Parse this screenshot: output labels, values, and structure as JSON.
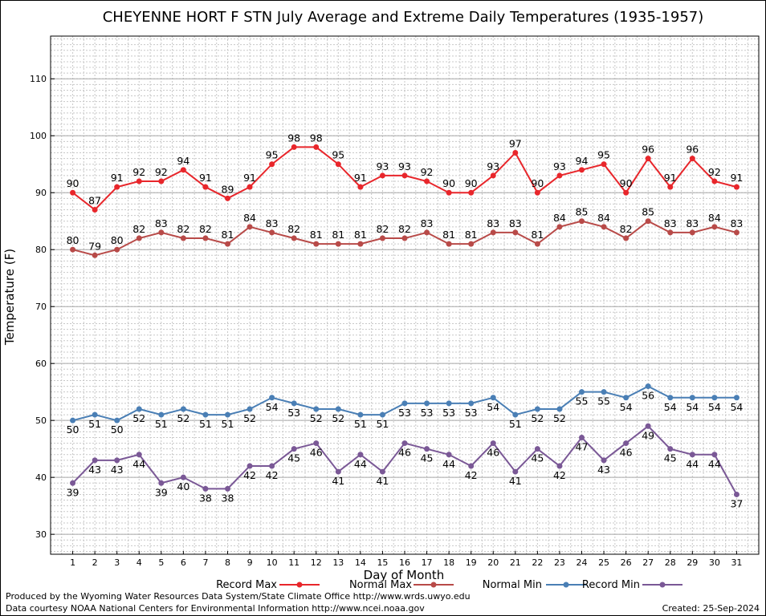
{
  "chart_data": {
    "type": "line",
    "title": "CHEYENNE HORT F STN July Average and Extreme Daily Temperatures (1935-1957)",
    "xlabel": "Day of Month",
    "ylabel": "Temperature (F)",
    "x": [
      1,
      2,
      3,
      4,
      5,
      6,
      7,
      8,
      9,
      10,
      11,
      12,
      13,
      14,
      15,
      16,
      17,
      18,
      19,
      20,
      21,
      22,
      23,
      24,
      25,
      26,
      27,
      28,
      29,
      30,
      31
    ],
    "xlim": [
      0,
      32
    ],
    "ylim": [
      26.5,
      117.5
    ],
    "yticks": [
      30,
      40,
      50,
      60,
      70,
      80,
      90,
      100,
      110
    ],
    "grid": true,
    "series": [
      {
        "name": "Record Max",
        "color": "#e8262b",
        "label_pos": "above",
        "values": [
          90,
          87,
          91,
          92,
          92,
          94,
          91,
          89,
          91,
          95,
          98,
          98,
          95,
          91,
          93,
          93,
          92,
          90,
          90,
          93,
          97,
          90,
          93,
          94,
          95,
          90,
          96,
          91,
          96,
          92,
          91
        ]
      },
      {
        "name": "Normal Max",
        "color": "#b84a48",
        "label_pos": "above",
        "values": [
          80,
          79,
          80,
          82,
          83,
          82,
          82,
          81,
          84,
          83,
          82,
          81,
          81,
          81,
          82,
          82,
          83,
          81,
          81,
          83,
          83,
          81,
          84,
          85,
          84,
          82,
          85,
          83,
          83,
          84,
          83
        ]
      },
      {
        "name": "Normal Min",
        "color": "#4a7fb5",
        "label_pos": "below",
        "values": [
          50,
          51,
          50,
          52,
          51,
          52,
          51,
          51,
          52,
          54,
          53,
          52,
          52,
          51,
          51,
          53,
          53,
          53,
          53,
          54,
          51,
          52,
          52,
          55,
          55,
          54,
          56,
          54,
          54,
          54,
          54
        ]
      },
      {
        "name": "Record Min",
        "color": "#7a5896",
        "label_pos": "below",
        "values": [
          39,
          43,
          43,
          44,
          39,
          40,
          38,
          38,
          42,
          42,
          45,
          46,
          41,
          44,
          41,
          46,
          45,
          44,
          42,
          46,
          41,
          45,
          42,
          47,
          43,
          46,
          49,
          45,
          44,
          44,
          37
        ]
      }
    ]
  },
  "footer": {
    "produced_by": "Produced by the Wyoming Water Resources Data System/State Climate Office http://www.wrds.uwyo.edu",
    "data_courtesy": "Data courtesy NOAA National Centers for Environmental Information http://www.ncei.noaa.gov",
    "created": "Created:  25-Sep-2024"
  }
}
